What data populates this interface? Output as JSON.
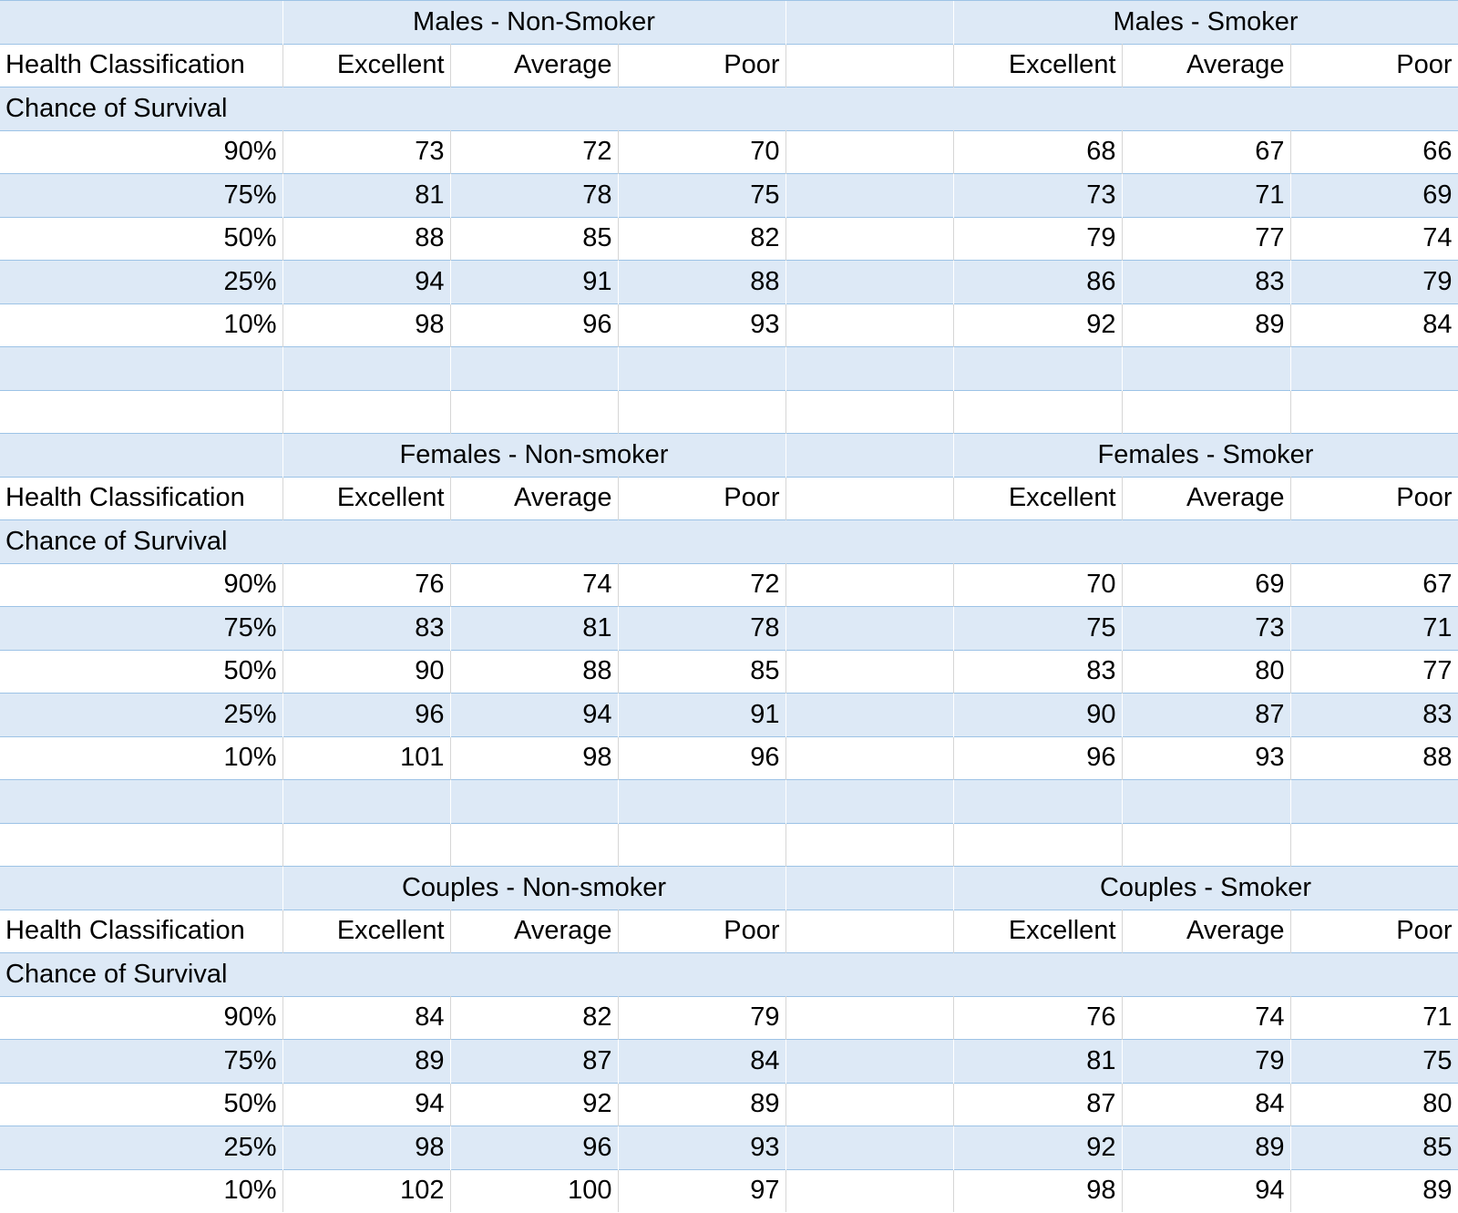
{
  "blocks": [
    {
      "title_left": "Males - Non-Smoker",
      "title_right": "Males - Smoker",
      "row_header": "Health Classification",
      "columns": [
        "Excellent",
        "Average",
        "Poor"
      ],
      "right_columns": [
        "Excellent",
        "Average",
        "Poor"
      ],
      "subheader": "Chance of Survival",
      "rows": [
        {
          "label": "90%",
          "left": [
            73,
            72,
            70
          ],
          "right": [
            68,
            67,
            66
          ]
        },
        {
          "label": "75%",
          "left": [
            81,
            78,
            75
          ],
          "right": [
            73,
            71,
            69
          ]
        },
        {
          "label": "50%",
          "left": [
            88,
            85,
            82
          ],
          "right": [
            79,
            77,
            74
          ]
        },
        {
          "label": "25%",
          "left": [
            94,
            91,
            88
          ],
          "right": [
            86,
            83,
            79
          ]
        },
        {
          "label": "10%",
          "left": [
            98,
            96,
            93
          ],
          "right": [
            92,
            89,
            84
          ]
        }
      ]
    },
    {
      "title_left": "Females - Non-smoker",
      "title_right": "Females - Smoker",
      "row_header": "Health Classification",
      "columns": [
        "Excellent",
        "Average",
        "Poor"
      ],
      "right_columns": [
        "Excellent",
        "Average",
        "Poor"
      ],
      "subheader": "Chance of Survival",
      "rows": [
        {
          "label": "90%",
          "left": [
            76,
            74,
            72
          ],
          "right": [
            70,
            69,
            67
          ]
        },
        {
          "label": "75%",
          "left": [
            83,
            81,
            78
          ],
          "right": [
            75,
            73,
            71
          ]
        },
        {
          "label": "50%",
          "left": [
            90,
            88,
            85
          ],
          "right": [
            83,
            80,
            77
          ]
        },
        {
          "label": "25%",
          "left": [
            96,
            94,
            91
          ],
          "right": [
            90,
            87,
            83
          ]
        },
        {
          "label": "10%",
          "left": [
            101,
            98,
            96
          ],
          "right": [
            96,
            93,
            88
          ]
        }
      ]
    },
    {
      "title_left": "Couples - Non-smoker",
      "title_right": "Couples - Smoker",
      "row_header": "Health Classification",
      "columns": [
        "Excellent",
        "Average",
        "Poor"
      ],
      "right_columns": [
        "Excellent",
        "Average",
        "Poor"
      ],
      "subheader": "Chance of Survival",
      "rows": [
        {
          "label": "90%",
          "left": [
            84,
            82,
            79
          ],
          "right": [
            76,
            74,
            71
          ]
        },
        {
          "label": "75%",
          "left": [
            89,
            87,
            84
          ],
          "right": [
            81,
            79,
            75
          ]
        },
        {
          "label": "50%",
          "left": [
            94,
            92,
            89
          ],
          "right": [
            87,
            84,
            80
          ]
        },
        {
          "label": "25%",
          "left": [
            98,
            96,
            93
          ],
          "right": [
            92,
            89,
            85
          ]
        },
        {
          "label": "10%",
          "left": [
            102,
            100,
            97
          ],
          "right": [
            98,
            94,
            89
          ]
        }
      ]
    }
  ]
}
